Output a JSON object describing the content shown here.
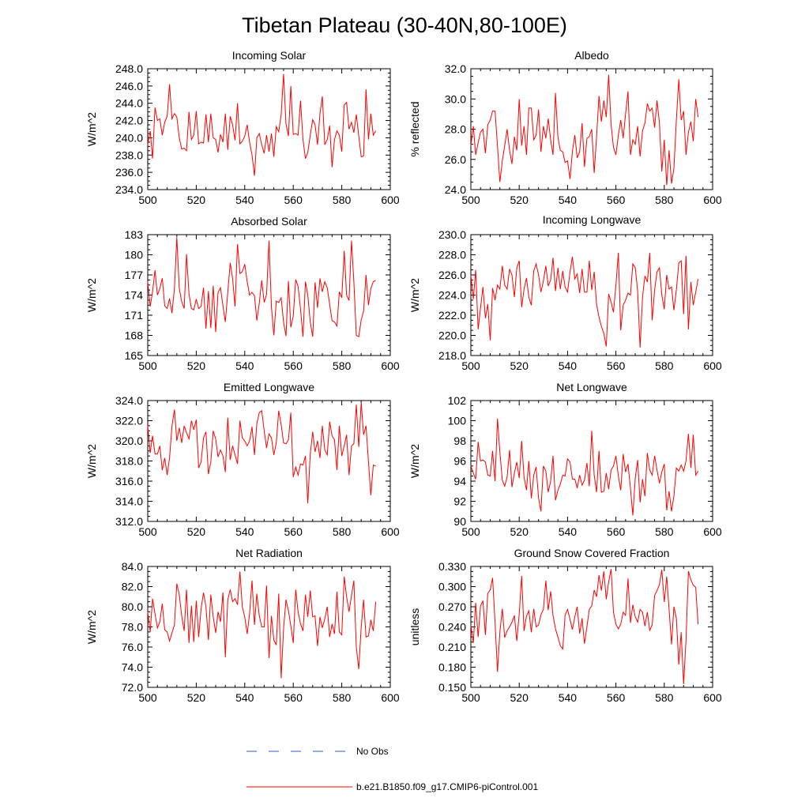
{
  "title": "Tibetan Plateau (30-40N,80-100E)",
  "colors": {
    "model_line": "#ff0000",
    "obs_line": "#3355cc",
    "axis": "#000000"
  },
  "legend": {
    "obs_label": "No Obs",
    "model_label": "b.e21.B1850.f09_g17.CMIP6-piControl.001"
  },
  "chart_data": [
    {
      "type": "line",
      "title": "Incoming Solar",
      "xlabel": "",
      "ylabel": "W/m^2",
      "xlim": [
        500,
        600
      ],
      "ylim": [
        234,
        248
      ],
      "decimals": 1,
      "xticks": [
        500,
        520,
        540,
        560,
        580,
        600
      ],
      "yticks": [
        234,
        236,
        238,
        240,
        242,
        244,
        246,
        248
      ],
      "x_start": 500,
      "x_step": 1,
      "values": [
        239.2,
        240.8,
        237.6,
        243.5,
        242.0,
        242.2,
        240.3,
        241.8,
        242.5,
        246.2,
        242.2,
        242.8,
        242.4,
        240.0,
        238.7,
        238.8,
        238.5,
        243.0,
        239.8,
        240.3,
        243.1,
        239.3,
        239.5,
        239.4,
        242.7,
        239.5,
        242.8,
        240.0,
        239.8,
        238.3,
        240.4,
        239.5,
        242.8,
        238.6,
        242.5,
        241.5,
        239.7,
        244.0,
        239.3,
        239.6,
        240.2,
        241.5,
        239.5,
        238.0,
        235.6,
        240.0,
        240.5,
        239.2,
        238.2,
        240.3,
        238.4,
        240.5,
        237.8,
        241.3,
        240.7,
        242.7,
        247.4,
        241.6,
        240.2,
        246.0,
        240.4,
        240.5,
        240.3,
        244.3,
        239.8,
        237.6,
        238.3,
        240.3,
        242.1,
        241.5,
        239.2,
        242.8,
        244.8,
        239.2,
        239.8,
        241.4,
        236.6,
        239.8,
        240.8,
        240.3,
        238.4,
        243.8,
        244.1,
        241.0,
        241.8,
        240.6,
        242.7,
        240.2,
        237.8,
        237.9,
        245.6,
        239.8,
        242.8,
        240.3,
        240.8
      ]
    },
    {
      "type": "line",
      "title": "Albedo",
      "xlabel": "",
      "ylabel": "% reflected",
      "xlim": [
        500,
        600
      ],
      "ylim": [
        24,
        32
      ],
      "decimals": 1,
      "xticks": [
        500,
        520,
        540,
        560,
        580,
        600
      ],
      "yticks": [
        24,
        26,
        28,
        30,
        32
      ],
      "x_start": 500,
      "x_step": 1,
      "values": [
        26.9,
        28.2,
        26.3,
        27.1,
        27.8,
        28.0,
        26.4,
        28.3,
        28.6,
        29.2,
        29.2,
        26.9,
        24.5,
        25.9,
        26.9,
        28.0,
        26.6,
        25.7,
        27.5,
        26.6,
        30.0,
        26.9,
        28.2,
        26.3,
        29.4,
        29.4,
        27.3,
        27.6,
        29.3,
        26.5,
        28.2,
        27.4,
        28.7,
        27.3,
        26.3,
        30.4,
        27.5,
        26.6,
        26.5,
        25.8,
        25.9,
        24.7,
        26.5,
        27.6,
        26.1,
        26.5,
        28.4,
        25.5,
        27.4,
        27.5,
        28.0,
        25.1,
        27.5,
        30.2,
        28.5,
        29.9,
        28.8,
        31.6,
        28.3,
        26.8,
        26.3,
        27.6,
        28.6,
        27.4,
        29.0,
        30.5,
        26.3,
        27.3,
        27.0,
        28.2,
        26.2,
        27.9,
        28.4,
        29.7,
        29.2,
        29.4,
        28.1,
        29.9,
        28.4,
        25.2,
        27.3,
        24.3,
        26.6,
        24.4,
        25.4,
        28.6,
        31.3,
        28.6,
        29.2,
        26.3,
        27.8,
        28.5,
        27.2,
        30.0,
        28.8
      ]
    },
    {
      "type": "line",
      "title": "Absorbed Solar",
      "xlabel": "",
      "ylabel": "W/m^2",
      "xlim": [
        500,
        600
      ],
      "ylim": [
        165,
        183
      ],
      "decimals": 0,
      "xticks": [
        500,
        520,
        540,
        560,
        580,
        600
      ],
      "yticks": [
        165,
        168,
        171,
        174,
        177,
        180,
        183
      ],
      "x_start": 500,
      "x_step": 1,
      "values": [
        176.0,
        172.3,
        174.5,
        177.7,
        174.0,
        175.0,
        176.5,
        172.4,
        172.0,
        173.5,
        171.3,
        175.0,
        182.6,
        175.0,
        173.0,
        172.0,
        180.1,
        174.2,
        172.0,
        171.8,
        173.4,
        172.0,
        172.3,
        175.1,
        169.0,
        174.6,
        169.1,
        175.4,
        168.5,
        174.4,
        175.1,
        172.4,
        170.0,
        174.4,
        178.8,
        176.5,
        172.3,
        181.6,
        177.2,
        177.5,
        178.6,
        176.0,
        174.0,
        174.4,
        173.9,
        170.2,
        172.8,
        176.2,
        172.9,
        174.1,
        182.1,
        172.2,
        168.0,
        173.1,
        172.9,
        173.6,
        170.0,
        167.9,
        176.1,
        169.2,
        170.9,
        176.3,
        175.3,
        171.9,
        167.8,
        176.0,
        174.0,
        170.0,
        167.8,
        175.9,
        172.1,
        176.5,
        174.5,
        176.0,
        175.1,
        172.6,
        170.2,
        170.0,
        169.4,
        174.5,
        173.6,
        180.6,
        174.0,
        173.2,
        182.1,
        176.0,
        168.0,
        167.8,
        170.3,
        171.6,
        177.0,
        172.5,
        175.0,
        176.0,
        176.2
      ]
    },
    {
      "type": "line",
      "title": "Incoming Longwave",
      "xlabel": "",
      "ylabel": "W/m^2",
      "xlim": [
        500,
        600
      ],
      "ylim": [
        218,
        230
      ],
      "decimals": 1,
      "xticks": [
        500,
        520,
        540,
        560,
        580,
        600
      ],
      "yticks": [
        218,
        220,
        222,
        224,
        226,
        228,
        230
      ],
      "x_start": 500,
      "x_step": 1,
      "values": [
        226.0,
        223.6,
        226.5,
        220.6,
        222.7,
        224.8,
        221.7,
        223.1,
        219.5,
        224.7,
        223.5,
        225.0,
        224.6,
        226.9,
        225.0,
        224.6,
        226.6,
        226.0,
        223.8,
        226.7,
        227.4,
        222.8,
        224.6,
        225.7,
        223.8,
        223.0,
        226.4,
        227.1,
        226.0,
        224.3,
        225.4,
        226.9,
        224.9,
        225.5,
        227.7,
        224.4,
        226.7,
        224.6,
        226.4,
        224.8,
        224.3,
        226.3,
        227.8,
        225.6,
        226.1,
        224.2,
        226.6,
        224.3,
        224.3,
        227.4,
        224.5,
        226.3,
        223.1,
        221.8,
        220.9,
        220.2,
        218.9,
        224.1,
        223.3,
        222.3,
        225.0,
        228.2,
        220.5,
        223.0,
        223.5,
        224.2,
        224.0,
        227.1,
        226.7,
        224.4,
        218.8,
        223.8,
        225.9,
        225.3,
        228.2,
        221.5,
        224.5,
        226.3,
        226.7,
        224.0,
        222.6,
        226.0,
        224.6,
        224.8,
        222.5,
        224.5,
        227.2,
        227.4,
        222.1,
        227.9,
        220.6,
        225.3,
        223.0,
        224.3,
        225.6
      ]
    },
    {
      "type": "line",
      "title": "Emitted Longwave",
      "xlabel": "",
      "ylabel": "W/m^2",
      "xlim": [
        500,
        600
      ],
      "ylim": [
        312,
        324
      ],
      "decimals": 1,
      "xticks": [
        500,
        520,
        540,
        560,
        580,
        600
      ],
      "yticks": [
        312,
        314,
        316,
        318,
        320,
        322,
        324
      ],
      "x_start": 500,
      "x_step": 1,
      "values": [
        321.5,
        318.8,
        320.5,
        318.7,
        318.7,
        319.5,
        317.1,
        318.3,
        316.6,
        318.3,
        321.5,
        323.1,
        320.0,
        321.3,
        319.8,
        321.5,
        320.8,
        320.2,
        322.0,
        321.1,
        322.1,
        317.3,
        317.9,
        320.3,
        320.9,
        316.7,
        317.9,
        321.0,
        320.2,
        318.4,
        319.1,
        318.5,
        316.9,
        322.3,
        318.1,
        319.5,
        318.6,
        317.7,
        322.0,
        320.3,
        320.0,
        319.5,
        320.0,
        321.4,
        318.6,
        321.7,
        322.8,
        323.0,
        321.0,
        319.3,
        320.7,
        320.3,
        318.6,
        319.8,
        323.0,
        321.6,
        319.8,
        319.7,
        320.1,
        322.8,
        316.4,
        317.4,
        316.6,
        317.7,
        317.6,
        318.5,
        313.8,
        318.7,
        320.9,
        318.9,
        320.0,
        318.3,
        321.5,
        319.1,
        318.6,
        321.9,
        320.5,
        320.1,
        317.1,
        321.5,
        318.5,
        319.5,
        320.6,
        316.6,
        319.5,
        319.7,
        323.6,
        319.4,
        323.8,
        320.6,
        321.5,
        317.9,
        314.6,
        317.6,
        317.5
      ]
    },
    {
      "type": "line",
      "title": "Net Longwave",
      "xlabel": "",
      "ylabel": "W/m^2",
      "xlim": [
        500,
        600
      ],
      "ylim": [
        90,
        102
      ],
      "decimals": 0,
      "xticks": [
        500,
        520,
        540,
        560,
        580,
        600
      ],
      "yticks": [
        90,
        92,
        94,
        96,
        98,
        100,
        102
      ],
      "x_start": 500,
      "x_step": 1,
      "values": [
        95.5,
        94.8,
        94.2,
        97.9,
        96.0,
        96.1,
        95.9,
        94.6,
        94.5,
        97.0,
        94.0,
        100.2,
        96.9,
        94.1,
        93.5,
        94.4,
        97.1,
        93.4,
        94.8,
        95.9,
        94.3,
        98.0,
        94.4,
        93.1,
        96.0,
        92.3,
        94.6,
        95.4,
        92.3,
        91.0,
        95.5,
        95.0,
        92.9,
        94.0,
        96.5,
        92.1,
        93.1,
        93.7,
        94.6,
        94.5,
        96.2,
        95.9,
        94.2,
        94.2,
        93.3,
        94.6,
        93.6,
        94.1,
        95.8,
        93.5,
        99.0,
        94.6,
        92.9,
        97.0,
        92.9,
        93.0,
        94.8,
        93.2,
        95.1,
        95.5,
        96.5,
        94.5,
        93.1,
        96.7,
        94.9,
        95.7,
        93.3,
        90.6,
        94.3,
        96.1,
        91.9,
        94.2,
        92.5,
        96.8,
        95.1,
        94.6,
        96.5,
        95.1,
        93.8,
        94.9,
        95.7,
        91.1,
        93.0,
        91.0,
        92.5,
        95.3,
        95.0,
        95.6,
        95.0,
        96.0,
        98.7,
        95.3,
        98.6,
        94.6,
        95.0
      ]
    },
    {
      "type": "line",
      "title": "Net Radiation",
      "xlabel": "",
      "ylabel": "W/m^2",
      "xlim": [
        500,
        600
      ],
      "ylim": [
        72,
        84
      ],
      "decimals": 1,
      "xticks": [
        500,
        520,
        540,
        560,
        580,
        600
      ],
      "yticks": [
        72,
        74,
        76,
        78,
        80,
        82,
        84
      ],
      "x_start": 500,
      "x_step": 1,
      "values": [
        79.5,
        77.5,
        80.8,
        79.3,
        77.9,
        78.5,
        80.3,
        77.7,
        77.5,
        76.6,
        77.4,
        78.2,
        82.3,
        81.2,
        79.1,
        77.6,
        81.7,
        76.4,
        80.1,
        76.5,
        80.6,
        77.0,
        79.8,
        81.4,
        80.0,
        76.7,
        81.2,
        79.0,
        77.4,
        79.5,
        78.5,
        81.4,
        75.0,
        80.7,
        81.7,
        80.5,
        80.8,
        80.2,
        83.5,
        80.0,
        79.0,
        77.3,
        79.3,
        82.6,
        78.2,
        81.3,
        79.1,
        78.0,
        78.0,
        82.1,
        74.9,
        79.1,
        76.7,
        76.2,
        81.3,
        72.9,
        77.8,
        80.7,
        79.6,
        78.1,
        76.4,
        81.7,
        79.5,
        78.3,
        77.6,
        81.2,
        79.0,
        81.6,
        79.0,
        79.1,
        76.1,
        79.0,
        77.9,
        78.8,
        80.0,
        77.0,
        78.3,
        77.3,
        81.5,
        77.5,
        77.2,
        83.0,
        81.0,
        79.5,
        81.1,
        82.6,
        76.0,
        73.8,
        78.0,
        80.7,
        77.0,
        77.1,
        78.7,
        77.6,
        80.5
      ]
    },
    {
      "type": "line",
      "title": "Ground Snow Covered Fraction",
      "xlabel": "",
      "ylabel": "unitless",
      "xlim": [
        500,
        600
      ],
      "ylim": [
        0.15,
        0.33
      ],
      "decimals": 3,
      "xticks": [
        500,
        520,
        540,
        560,
        580,
        600
      ],
      "yticks": [
        0.15,
        0.18,
        0.21,
        0.24,
        0.27,
        0.3,
        0.33
      ],
      "x_start": 500,
      "x_step": 1,
      "values": [
        0.242,
        0.216,
        0.276,
        0.225,
        0.271,
        0.279,
        0.228,
        0.29,
        0.295,
        0.313,
        0.247,
        0.173,
        0.232,
        0.267,
        0.224,
        0.234,
        0.24,
        0.247,
        0.257,
        0.219,
        0.259,
        0.316,
        0.234,
        0.256,
        0.264,
        0.232,
        0.267,
        0.24,
        0.243,
        0.258,
        0.266,
        0.309,
        0.265,
        0.293,
        0.257,
        0.237,
        0.225,
        0.212,
        0.207,
        0.258,
        0.266,
        0.251,
        0.236,
        0.255,
        0.27,
        0.23,
        0.253,
        0.215,
        0.24,
        0.266,
        0.271,
        0.295,
        0.285,
        0.317,
        0.294,
        0.323,
        0.281,
        0.307,
        0.326,
        0.262,
        0.244,
        0.237,
        0.244,
        0.262,
        0.257,
        0.312,
        0.246,
        0.273,
        0.255,
        0.247,
        0.266,
        0.262,
        0.241,
        0.262,
        0.235,
        0.243,
        0.287,
        0.294,
        0.303,
        0.325,
        0.277,
        0.315,
        0.266,
        0.214,
        0.27,
        0.253,
        0.184,
        0.232,
        0.155,
        0.22,
        0.323,
        0.31,
        0.302,
        0.299,
        0.244
      ]
    }
  ]
}
